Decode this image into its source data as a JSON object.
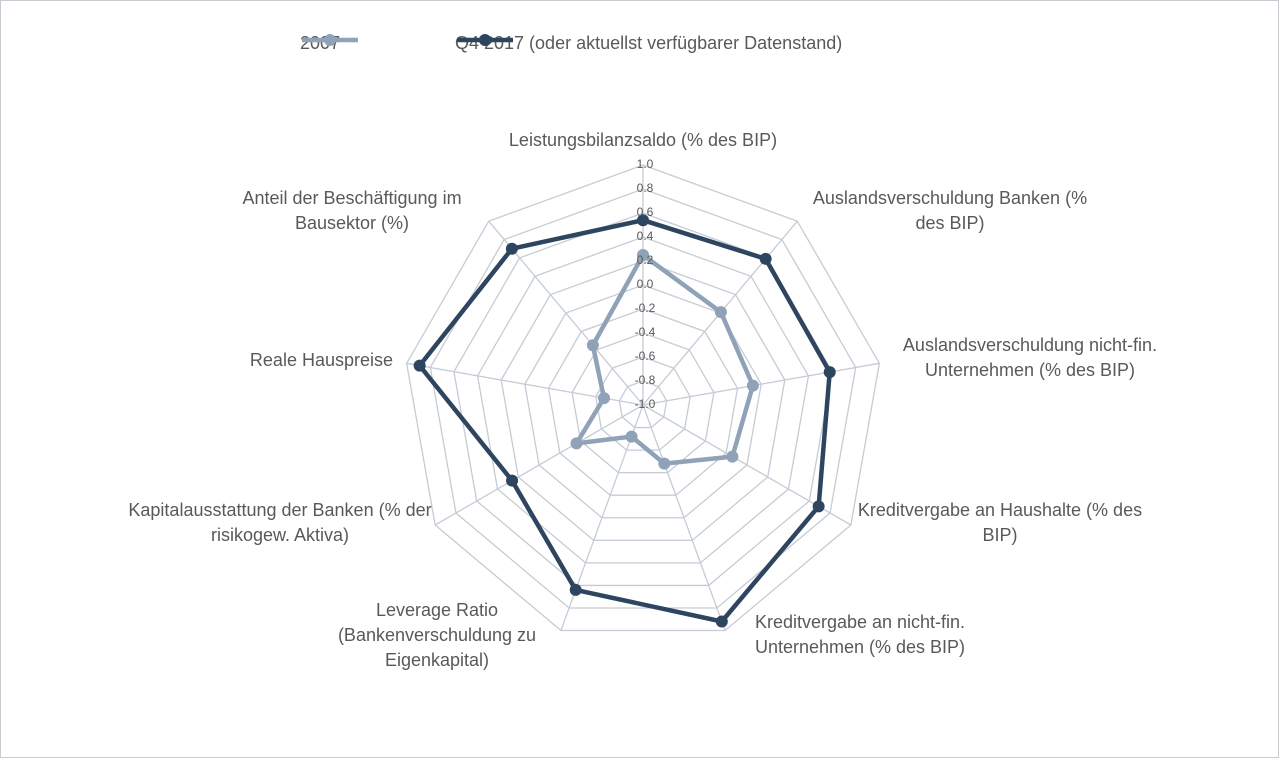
{
  "chart_data": {
    "type": "radar",
    "categories": [
      "Leistungsbilanzsaldo (% des BIP)",
      "Auslandsverschuldung Banken (% des BIP)",
      "Auslandsverschuldung nicht-fin. Unternehmen (% des BIP)",
      "Kreditvergabe an Haushalte (% des BIP)",
      "Kreditvergabe an nicht-fin. Unternehmen (% des BIP)",
      "Leverage Ratio (Bankenverschuldung zu Eigenkapital)",
      "Kapitalausstattung der Banken (% der risikogew. Aktiva)",
      "Reale Hauspreise",
      "Anteil der Beschäftigung im Bausektor (%)"
    ],
    "series": [
      {
        "name": "2007",
        "color": "#8fa2b8",
        "values": [
          0.25,
          0.01,
          -0.07,
          -0.14,
          -0.48,
          -0.72,
          -0.36,
          -0.67,
          -0.35
        ]
      },
      {
        "name": "Q4 2017 (oder aktuellst verfügbarer Datenstand)",
        "color": "#2e4560",
        "values": [
          0.54,
          0.59,
          0.58,
          0.69,
          0.92,
          0.64,
          0.26,
          0.89,
          0.7
        ]
      }
    ],
    "ylim": [
      -1,
      1
    ],
    "yticks": [
      {
        "value": -1,
        "label": "-1.0"
      },
      -0.8,
      -0.6,
      -0.4,
      -0.2,
      {
        "value": 0,
        "label": "0.0"
      },
      0.2,
      0.4,
      0.6,
      0.8,
      {
        "value": 1,
        "label": "1.0"
      }
    ],
    "grid": true,
    "legend": "top"
  }
}
